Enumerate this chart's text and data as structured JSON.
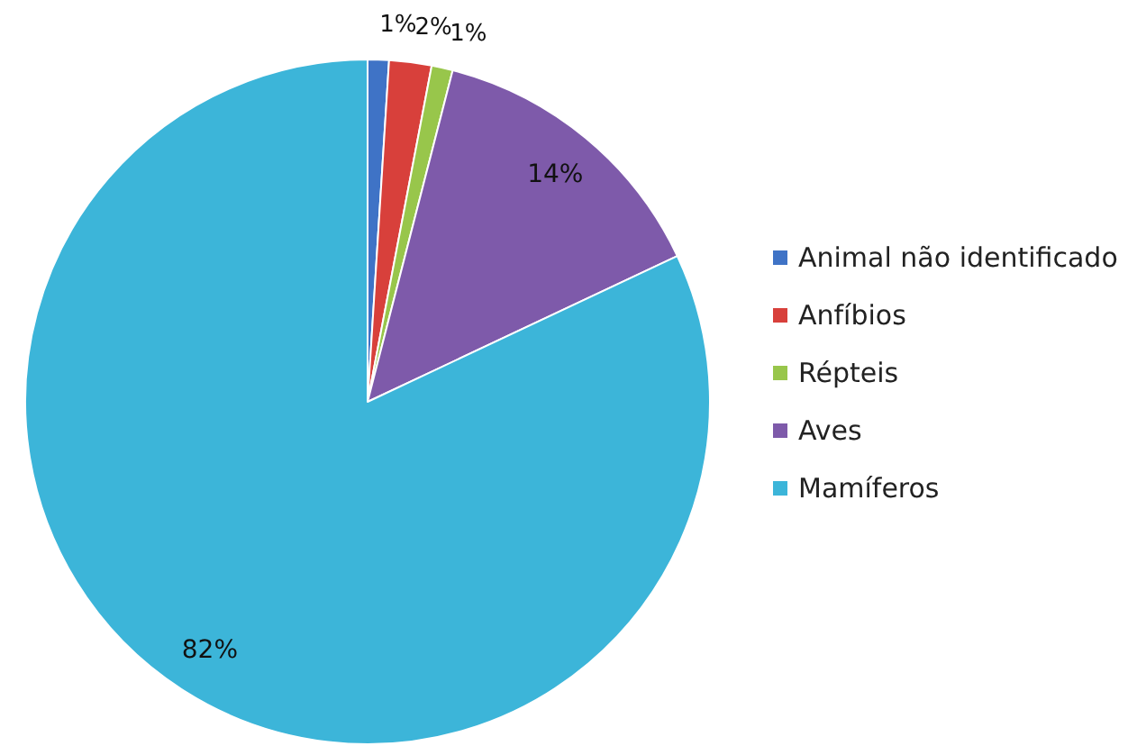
{
  "chart_data": {
    "type": "pie",
    "categories": [
      "Animal não identificado",
      "Anfíbios",
      "Répteis",
      "Aves",
      "Mamíferos"
    ],
    "values": [
      1,
      2,
      1,
      14,
      82
    ],
    "colors": [
      "#3f73c6",
      "#d8403b",
      "#98c64b",
      "#7e5aaa",
      "#3cb5d9"
    ],
    "value_labels": [
      "1%",
      "2%",
      "1%",
      "14%",
      "82%"
    ],
    "legend": "right"
  }
}
